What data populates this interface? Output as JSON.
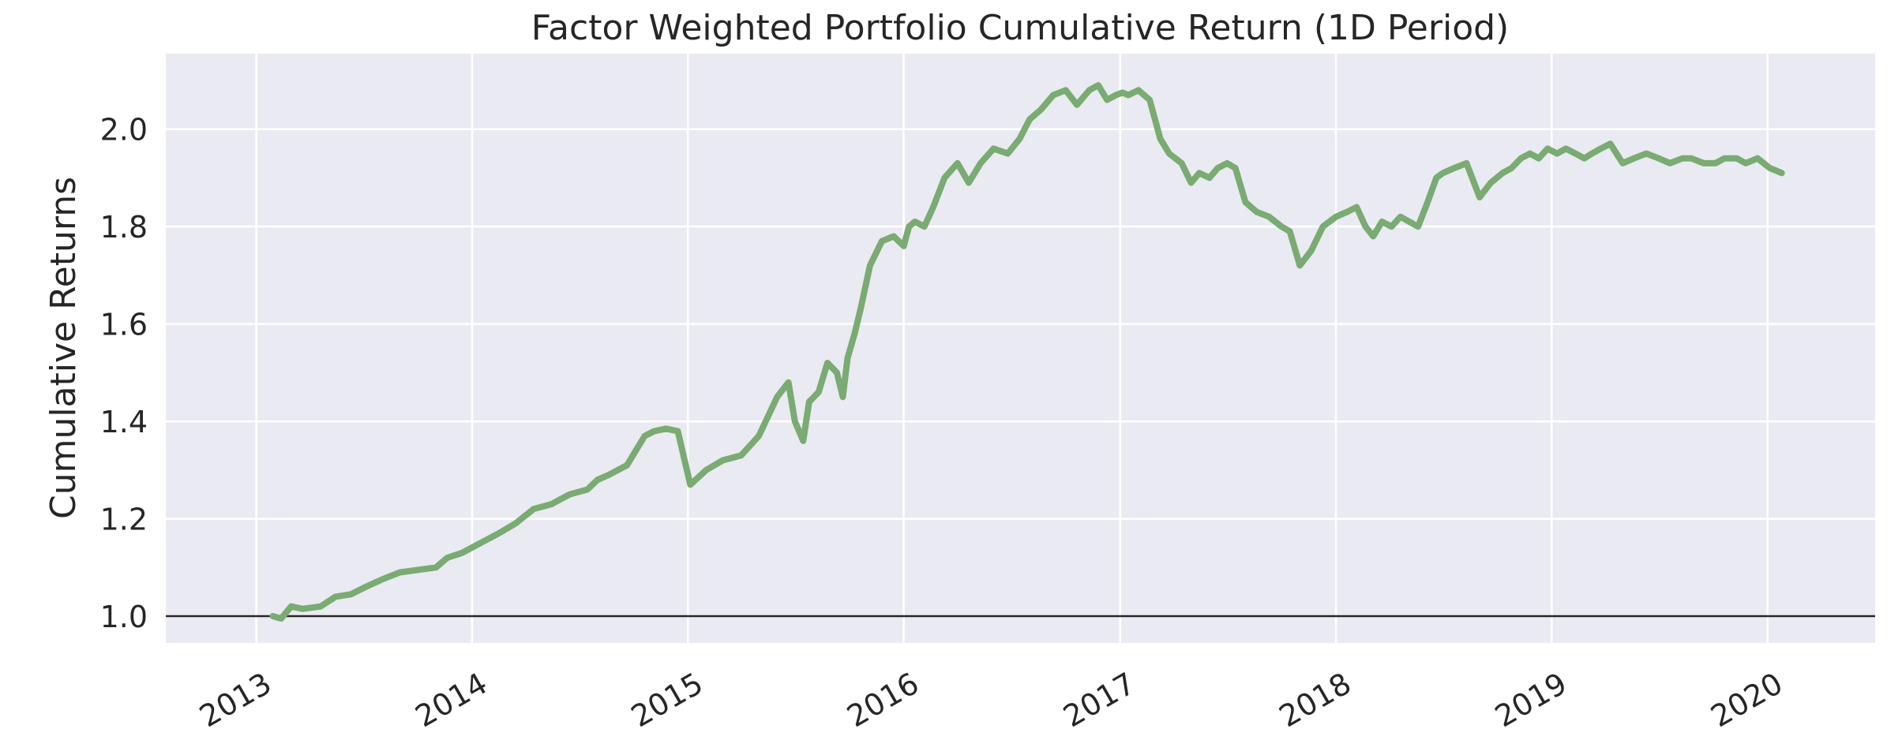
{
  "colors": {
    "background": "#ffffff",
    "plot_background": "#eaeaf2",
    "grid": "#ffffff",
    "line": "#7aab72",
    "baseline": "#262626",
    "text": "#262626"
  },
  "chart_data": {
    "type": "line",
    "title": "Factor Weighted Portfolio Cumulative Return (1D Period)",
    "xlabel": "",
    "ylabel": "Cumulative Returns",
    "xlim": [
      "2012-08-01",
      "2020-07-01"
    ],
    "ylim": [
      0.945,
      2.155
    ],
    "xticks": [
      "2013",
      "2014",
      "2015",
      "2016",
      "2017",
      "2018",
      "2019",
      "2020"
    ],
    "yticks": [
      "1.0",
      "1.2",
      "1.4",
      "1.6",
      "1.8",
      "2.0"
    ],
    "grid": true,
    "baseline": 1.0,
    "series": [
      {
        "x": [
          "2013-01-29",
          "2013-02-12",
          "2013-03-01",
          "2013-03-20",
          "2013-04-20",
          "2013-05-15",
          "2013-06-10",
          "2013-07-05",
          "2013-08-01",
          "2013-09-01",
          "2013-10-01",
          "2013-11-01",
          "2013-11-20",
          "2013-12-15",
          "2014-01-15",
          "2014-02-15",
          "2014-03-15",
          "2014-04-15",
          "2014-05-15",
          "2014-06-15",
          "2014-07-15",
          "2014-08-01",
          "2014-08-20",
          "2014-09-20",
          "2014-10-20",
          "2014-11-05",
          "2014-11-25",
          "2014-12-15",
          "2015-01-05",
          "2015-02-01",
          "2015-03-01",
          "2015-04-01",
          "2015-05-01",
          "2015-06-01",
          "2015-06-20",
          "2015-07-01",
          "2015-07-15",
          "2015-07-25",
          "2015-08-10",
          "2015-08-25",
          "2015-09-10",
          "2015-09-20",
          "2015-09-28",
          "2015-10-10",
          "2015-10-20",
          "2015-11-05",
          "2015-11-25",
          "2015-12-15",
          "2016-01-01",
          "2016-01-10",
          "2016-01-20",
          "2016-02-05",
          "2016-02-20",
          "2016-03-10",
          "2016-04-01",
          "2016-04-20",
          "2016-05-10",
          "2016-06-01",
          "2016-06-25",
          "2016-07-15",
          "2016-08-01",
          "2016-08-20",
          "2016-09-10",
          "2016-10-01",
          "2016-10-20",
          "2016-11-10",
          "2016-11-25",
          "2016-12-10",
          "2016-12-25",
          "2017-01-05",
          "2017-01-15",
          "2017-02-01",
          "2017-02-20",
          "2017-03-10",
          "2017-03-25",
          "2017-04-15",
          "2017-05-01",
          "2017-05-15",
          "2017-06-01",
          "2017-06-15",
          "2017-07-01",
          "2017-07-15",
          "2017-08-01",
          "2017-08-20",
          "2017-09-10",
          "2017-10-01",
          "2017-10-15",
          "2017-11-01",
          "2017-11-20",
          "2017-12-10",
          "2018-01-01",
          "2018-01-20",
          "2018-02-05",
          "2018-02-20",
          "2018-03-05",
          "2018-03-20",
          "2018-04-05",
          "2018-04-20",
          "2018-05-05",
          "2018-05-20",
          "2018-06-05",
          "2018-06-20",
          "2018-07-01",
          "2018-07-20",
          "2018-08-10",
          "2018-09-01",
          "2018-09-20",
          "2018-10-10",
          "2018-10-25",
          "2018-11-10",
          "2018-11-25",
          "2018-12-10",
          "2018-12-25",
          "2019-01-10",
          "2019-01-25",
          "2019-02-10",
          "2019-02-25",
          "2019-03-10",
          "2019-03-25",
          "2019-04-10",
          "2019-05-01",
          "2019-05-20",
          "2019-06-10",
          "2019-07-01",
          "2019-07-20",
          "2019-08-10",
          "2019-08-25",
          "2019-09-15",
          "2019-10-05",
          "2019-10-20",
          "2019-11-10",
          "2019-11-25",
          "2019-12-15",
          "2020-01-05",
          "2020-01-25"
        ],
        "y": [
          1.0,
          0.995,
          1.02,
          1.015,
          1.02,
          1.04,
          1.045,
          1.06,
          1.075,
          1.09,
          1.095,
          1.1,
          1.12,
          1.13,
          1.15,
          1.17,
          1.19,
          1.22,
          1.23,
          1.25,
          1.26,
          1.28,
          1.29,
          1.31,
          1.37,
          1.38,
          1.385,
          1.38,
          1.27,
          1.3,
          1.32,
          1.33,
          1.37,
          1.45,
          1.48,
          1.4,
          1.36,
          1.44,
          1.46,
          1.52,
          1.5,
          1.45,
          1.53,
          1.58,
          1.63,
          1.72,
          1.77,
          1.78,
          1.76,
          1.8,
          1.81,
          1.8,
          1.84,
          1.9,
          1.93,
          1.89,
          1.93,
          1.96,
          1.95,
          1.98,
          2.02,
          2.04,
          2.07,
          2.08,
          2.05,
          2.08,
          2.09,
          2.06,
          2.07,
          2.075,
          2.07,
          2.08,
          2.06,
          1.98,
          1.95,
          1.93,
          1.89,
          1.91,
          1.9,
          1.92,
          1.93,
          1.92,
          1.85,
          1.83,
          1.82,
          1.8,
          1.79,
          1.72,
          1.75,
          1.8,
          1.82,
          1.83,
          1.84,
          1.8,
          1.78,
          1.81,
          1.8,
          1.82,
          1.81,
          1.8,
          1.85,
          1.9,
          1.91,
          1.92,
          1.93,
          1.86,
          1.89,
          1.91,
          1.92,
          1.94,
          1.95,
          1.94,
          1.96,
          1.95,
          1.96,
          1.95,
          1.94,
          1.95,
          1.96,
          1.97,
          1.93,
          1.94,
          1.95,
          1.94,
          1.93,
          1.94,
          1.94,
          1.93,
          1.93,
          1.94,
          1.94,
          1.93,
          1.94,
          1.92,
          1.91
        ]
      }
    ]
  }
}
